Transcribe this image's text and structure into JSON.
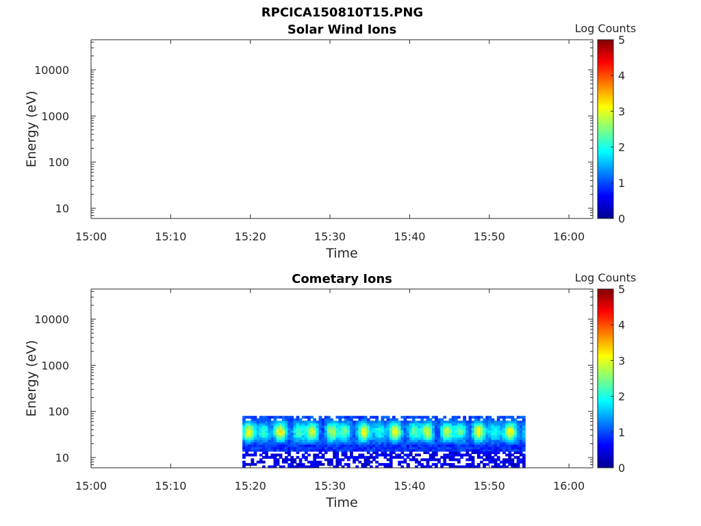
{
  "figure": {
    "title": "RPCICA150810T15.PNG"
  },
  "chart_data": [
    {
      "type": "heatmap",
      "title": "Solar Wind Ions",
      "xlabel": "Time",
      "ylabel": "Energy (eV)",
      "x_ticks": [
        "15:00",
        "15:10",
        "15:20",
        "15:30",
        "15:40",
        "15:50",
        "16:00"
      ],
      "xlim": [
        "15:00",
        "16:03"
      ],
      "y_scale": "log",
      "y_ticks": [
        "10",
        "100",
        "1000",
        "10000"
      ],
      "ylim": [
        6,
        45000
      ],
      "colorbar": {
        "label": "Log Counts",
        "range": [
          0,
          5
        ],
        "ticks": [
          "0",
          "1",
          "2",
          "3",
          "4",
          "5"
        ]
      },
      "data": {
        "present": false
      }
    },
    {
      "type": "heatmap",
      "title": "Cometary Ions",
      "xlabel": "Time",
      "ylabel": "Energy (eV)",
      "x_ticks": [
        "15:00",
        "15:10",
        "15:20",
        "15:30",
        "15:40",
        "15:50",
        "16:00"
      ],
      "xlim": [
        "15:00",
        "16:03"
      ],
      "y_scale": "log",
      "y_ticks": [
        "10",
        "100",
        "1000",
        "10000"
      ],
      "ylim": [
        6,
        45000
      ],
      "colorbar": {
        "label": "Log Counts",
        "range": [
          0,
          5
        ],
        "ticks": [
          "0",
          "1",
          "2",
          "3",
          "4",
          "5"
        ]
      },
      "data": {
        "present": true,
        "time_start": "15:19",
        "time_end": "15:54.5",
        "energy_min_ev": 6,
        "energy_max_ev": 80,
        "peak_log_counts": 3.0,
        "peak_band_energy_ev": [
          30,
          70
        ]
      }
    }
  ]
}
